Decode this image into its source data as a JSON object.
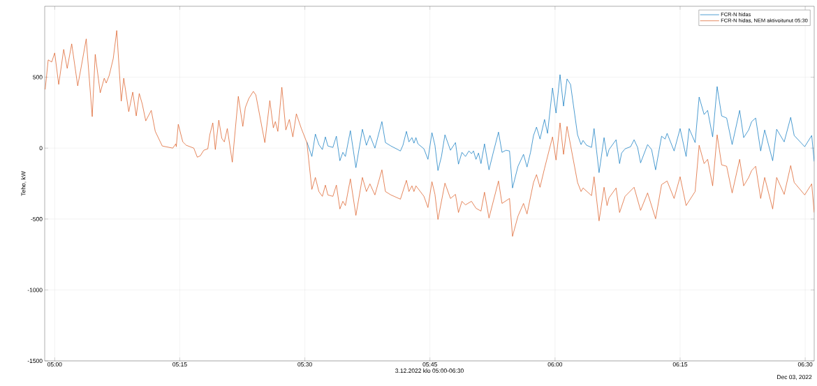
{
  "chart_data": {
    "type": "line",
    "xlabel": "3.12.2022 klo 05:00-06:30",
    "ylabel": "Teho, kW",
    "annotations": [
      "Dec 03, 2022"
    ],
    "xlim": [
      4.98,
      6.518
    ],
    "ylim": [
      -1500,
      1000
    ],
    "xticks": [
      {
        "value": 5,
        "label": "05:00"
      },
      {
        "value": 5.25,
        "label": "05:15"
      },
      {
        "value": 5.5,
        "label": "05:30"
      },
      {
        "value": 5.75,
        "label": "05:45"
      },
      {
        "value": 6,
        "label": "06:00"
      },
      {
        "value": 6.25,
        "label": "06:15"
      },
      {
        "value": 6.5,
        "label": "06:30"
      }
    ],
    "yticks": [
      -1500,
      -1000,
      -500,
      0,
      500
    ],
    "grid": true,
    "legend": "top right",
    "marker": "none",
    "line_style": "solid",
    "series": [
      {
        "name": "FCR-N hidas",
        "color": "#0072bd",
        "x": [
          5.504,
          5.514,
          5.521,
          5.528,
          5.535,
          5.541,
          5.546,
          5.556,
          5.563,
          5.57,
          5.576,
          5.581,
          5.591,
          5.602,
          5.615,
          5.623,
          5.63,
          5.64,
          5.654,
          5.661,
          5.672,
          5.691,
          5.696,
          5.703,
          5.708,
          5.714,
          5.718,
          5.722,
          5.726,
          5.738,
          5.746,
          5.754,
          5.76,
          5.766,
          5.773,
          5.78,
          5.791,
          5.801,
          5.807,
          5.814,
          5.821,
          5.828,
          5.833,
          5.837,
          5.842,
          5.847,
          5.852,
          5.859,
          5.868,
          5.876,
          5.887,
          5.894,
          5.902,
          5.909,
          5.915,
          5.926,
          5.937,
          5.944,
          5.951,
          5.957,
          5.963,
          5.97,
          5.979,
          5.985,
          5.995,
          6.002,
          6.01,
          6.017,
          6.024,
          6.031,
          6.045,
          6.052,
          6.056,
          6.063,
          6.073,
          6.078,
          6.088,
          6.098,
          6.104,
          6.108,
          6.122,
          6.129,
          6.133,
          6.14,
          6.151,
          6.158,
          6.165,
          6.171,
          6.185,
          6.193,
          6.201,
          6.213,
          6.22,
          6.224,
          6.238,
          6.25,
          6.262,
          6.268,
          6.28,
          6.288,
          6.298,
          6.305,
          6.315,
          6.324,
          6.333,
          6.343,
          6.354,
          6.369,
          6.377,
          6.387,
          6.393,
          6.401,
          6.411,
          6.419,
          6.435,
          6.443,
          6.458,
          6.471,
          6.478,
          6.499,
          6.513,
          6.518
        ],
        "values": [
          44,
          -59,
          99,
          25,
          -10,
          79,
          15,
          5,
          84,
          -89,
          -30,
          -59,
          123,
          -138,
          133,
          20,
          89,
          0,
          187,
          39,
          15,
          -20,
          20,
          118,
          44,
          74,
          35,
          74,
          30,
          -5,
          -79,
          109,
          20,
          -158,
          -59,
          94,
          -15,
          39,
          -113,
          -30,
          -59,
          -20,
          -39,
          -20,
          -79,
          -35,
          -109,
          30,
          -153,
          -39,
          113,
          -30,
          -15,
          -20,
          -281,
          -128,
          -44,
          -133,
          -30,
          89,
          148,
          64,
          202,
          104,
          424,
          247,
          518,
          296,
          488,
          449,
          94,
          25,
          54,
          20,
          5,
          138,
          -173,
          74,
          -59,
          -10,
          59,
          -109,
          -35,
          -5,
          10,
          59,
          5,
          -104,
          25,
          -10,
          -153,
          84,
          64,
          104,
          -20,
          138,
          -59,
          138,
          39,
          360,
          237,
          266,
          79,
          434,
          227,
          212,
          25,
          266,
          74,
          128,
          187,
          212,
          -20,
          128,
          -89,
          133,
          44,
          217,
          89,
          10,
          89,
          -94
        ]
      },
      {
        "name": "FCR-N hidas, NEM aktivoitunut 05:30",
        "color": "#d95319",
        "x": [
          4.981,
          4.987,
          4.994,
          5.0,
          5.008,
          5.018,
          5.025,
          5.034,
          5.046,
          5.053,
          5.063,
          5.075,
          5.081,
          5.091,
          5.099,
          5.103,
          5.109,
          5.117,
          5.124,
          5.133,
          5.138,
          5.148,
          5.156,
          5.163,
          5.169,
          5.175,
          5.182,
          5.193,
          5.201,
          5.215,
          5.236,
          5.242,
          5.243,
          5.247,
          5.256,
          5.263,
          5.278,
          5.285,
          5.291,
          5.298,
          5.306,
          5.31,
          5.316,
          5.321,
          5.328,
          5.334,
          5.339,
          5.345,
          5.355,
          5.367,
          5.376,
          5.381,
          5.388,
          5.397,
          5.402,
          5.42,
          5.43,
          5.437,
          5.441,
          5.446,
          5.454,
          5.462,
          5.469,
          5.476,
          5.483,
          5.493,
          5.504,
          5.514,
          5.521,
          5.528,
          5.535,
          5.541,
          5.546,
          5.556,
          5.563,
          5.57,
          5.576,
          5.581,
          5.591,
          5.602,
          5.615,
          5.623,
          5.63,
          5.64,
          5.654,
          5.661,
          5.672,
          5.691,
          5.703,
          5.708,
          5.714,
          5.718,
          5.722,
          5.738,
          5.746,
          5.754,
          5.76,
          5.766,
          5.78,
          5.791,
          5.801,
          5.807,
          5.814,
          5.821,
          5.833,
          5.842,
          5.852,
          5.859,
          5.868,
          5.887,
          5.894,
          5.909,
          5.915,
          5.926,
          5.937,
          5.944,
          5.957,
          5.963,
          5.97,
          5.979,
          5.995,
          6.002,
          6.01,
          6.017,
          6.024,
          6.045,
          6.052,
          6.056,
          6.073,
          6.078,
          6.088,
          6.098,
          6.104,
          6.108,
          6.122,
          6.129,
          6.14,
          6.158,
          6.171,
          6.185,
          6.201,
          6.213,
          6.224,
          6.238,
          6.25,
          6.262,
          6.28,
          6.288,
          6.298,
          6.305,
          6.315,
          6.324,
          6.333,
          6.343,
          6.354,
          6.369,
          6.377,
          6.387,
          6.393,
          6.401,
          6.411,
          6.419,
          6.435,
          6.443,
          6.458,
          6.471,
          6.478,
          6.499,
          6.513,
          6.518
        ],
        "values": [
          414,
          622,
          607,
          671,
          449,
          696,
          562,
          735,
          439,
          572,
          770,
          222,
          661,
          390,
          493,
          459,
          513,
          631,
          829,
          331,
          493,
          257,
          395,
          227,
          385,
          311,
          192,
          266,
          118,
          15,
          0,
          30,
          10,
          168,
          44,
          20,
          0,
          -64,
          -54,
          -15,
          -5,
          94,
          178,
          -10,
          197,
          69,
          44,
          138,
          -99,
          365,
          153,
          286,
          350,
          400,
          375,
          39,
          335,
          143,
          187,
          118,
          429,
          128,
          202,
          79,
          242,
          138,
          39,
          -291,
          -207,
          -306,
          -340,
          -261,
          -330,
          -340,
          -261,
          -429,
          -375,
          -405,
          -217,
          -474,
          -207,
          -306,
          -252,
          -330,
          -153,
          -306,
          -330,
          -360,
          -227,
          -306,
          -266,
          -306,
          -266,
          -340,
          -419,
          -237,
          -326,
          -503,
          -247,
          -355,
          -326,
          -454,
          -375,
          -400,
          -375,
          -424,
          -444,
          -311,
          -493,
          -232,
          -390,
          -355,
          -622,
          -479,
          -390,
          -464,
          -242,
          -187,
          -276,
          -143,
          79,
          -84,
          178,
          -44,
          153,
          -242,
          -306,
          -281,
          -335,
          -202,
          -513,
          -276,
          -405,
          -350,
          -281,
          -454,
          -340,
          -276,
          -439,
          -316,
          -498,
          -257,
          -232,
          -355,
          -202,
          -405,
          -306,
          20,
          -109,
          -79,
          -266,
          94,
          -118,
          -128,
          -316,
          -79,
          -266,
          -207,
          -158,
          -128,
          -355,
          -207,
          -429,
          -207,
          -326,
          -123,
          -242,
          -330,
          -252,
          -454
        ]
      }
    ]
  }
}
